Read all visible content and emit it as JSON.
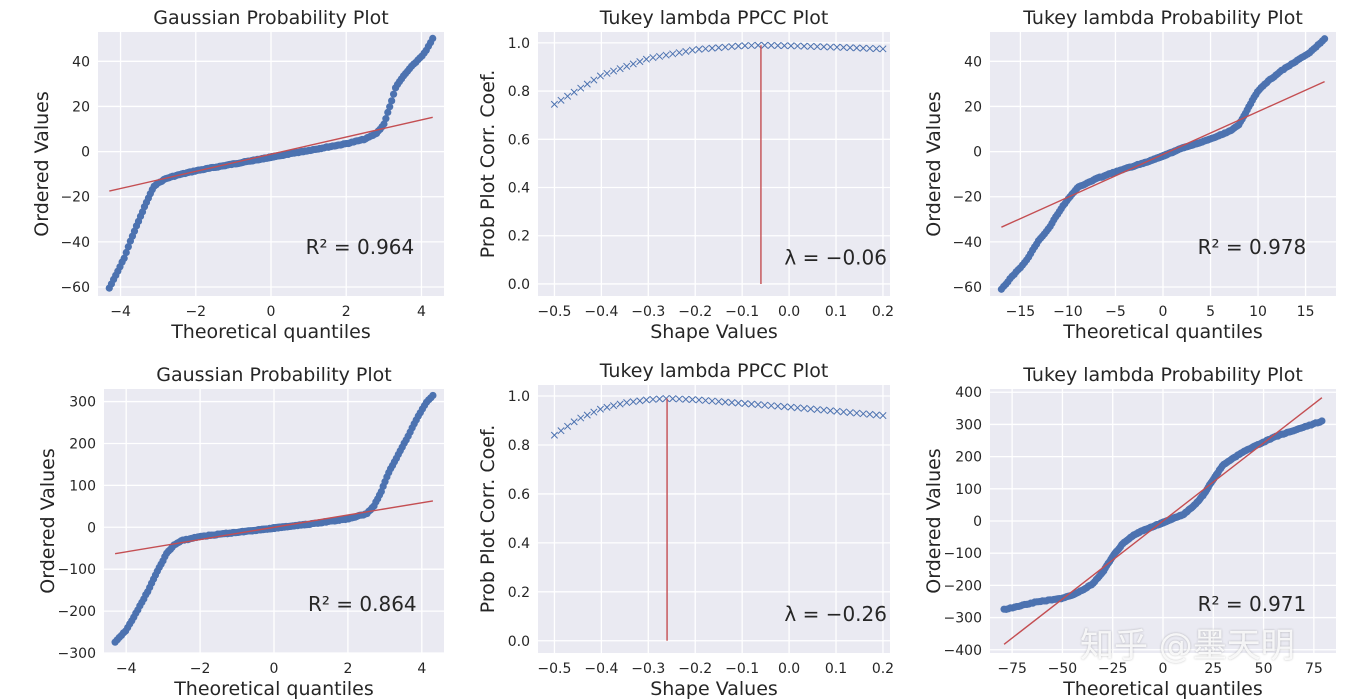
{
  "chart_data": [
    {
      "type": "scatter",
      "title": "Gaussian Probability Plot",
      "xlabel": "Theoretical quantiles",
      "ylabel": "Ordered Values",
      "xlim": [
        -4.6,
        4.6
      ],
      "ylim": [
        -64,
        53
      ],
      "xticks": [
        -4,
        -2,
        0,
        2,
        4
      ],
      "yticks": [
        -60,
        -40,
        -20,
        0,
        20,
        40
      ],
      "xtick_labels": [
        "−4",
        "−2",
        "0",
        "2",
        "4"
      ],
      "ytick_labels": [
        "−60",
        "−40",
        "−20",
        "0",
        "20",
        "40"
      ],
      "fit_line": {
        "x": [
          -4.3,
          4.3
        ],
        "y": [
          -17.5,
          15.2
        ]
      },
      "annotation": "R² = 0.964",
      "curve": {
        "x": [
          -4.3,
          -4.1,
          -3.9,
          -3.7,
          -3.5,
          -3.3,
          -3.1,
          -2.8,
          -2.5,
          -2.0,
          -1.0,
          0.0,
          1.0,
          2.0,
          2.5,
          2.8,
          3.0,
          3.1,
          3.2,
          3.3,
          3.5,
          3.7,
          3.9,
          4.1,
          4.3
        ],
        "y": [
          -60.5,
          -54,
          -47,
          -38,
          -30,
          -22,
          -15,
          -12,
          -10.5,
          -8.5,
          -5.5,
          -2.5,
          0.5,
          3.5,
          5.5,
          8,
          12,
          17,
          22,
          28,
          33,
          37,
          40.5,
          44,
          50
        ]
      },
      "points": 240,
      "gridded": true
    },
    {
      "type": "line",
      "title": "Tukey lambda PPCC Plot",
      "xlabel": "Shape Values",
      "ylabel": "Prob Plot Corr. Coef.",
      "xlim": [
        -0.535,
        0.215
      ],
      "ylim": [
        -0.05,
        1.045
      ],
      "xticks": [
        -0.5,
        -0.4,
        -0.3,
        -0.2,
        -0.1,
        0.0,
        0.1,
        0.2
      ],
      "yticks": [
        0.0,
        0.2,
        0.4,
        0.6,
        0.8,
        1.0
      ],
      "xtick_labels": [
        "−0.5",
        "−0.4",
        "−0.3",
        "−0.2",
        "−0.1",
        "0.0",
        "0.1",
        "0.2"
      ],
      "ytick_labels": [
        "0.0",
        "0.2",
        "0.4",
        "0.6",
        "0.8",
        "1.0"
      ],
      "curve": {
        "x": [
          -0.5,
          -0.4,
          -0.3,
          -0.2,
          -0.1,
          -0.06,
          0.0,
          0.1,
          0.2
        ],
        "y": [
          0.745,
          0.865,
          0.935,
          0.972,
          0.988,
          0.99,
          0.988,
          0.982,
          0.975
        ]
      },
      "marker_count": 51,
      "vline": -0.06,
      "annotation": "λ = −0.06",
      "gridded": true
    },
    {
      "type": "scatter",
      "title": "Tukey lambda Probability Plot",
      "xlabel": "Theoretical quantiles",
      "ylabel": "Ordered Values",
      "xlim": [
        -18.2,
        18.2
      ],
      "ylim": [
        -64,
        53
      ],
      "xticks": [
        -15,
        -10,
        -5,
        0,
        5,
        10,
        15
      ],
      "yticks": [
        -60,
        -40,
        -20,
        0,
        20,
        40
      ],
      "xtick_labels": [
        "−15",
        "−10",
        "−5",
        "0",
        "5",
        "10",
        "15"
      ],
      "ytick_labels": [
        "−60",
        "−40",
        "−20",
        "0",
        "20",
        "40"
      ],
      "fit_line": {
        "x": [
          -17,
          17
        ],
        "y": [
          -33.5,
          31
        ]
      },
      "annotation": "R² = 0.978",
      "curve": {
        "x": [
          -17,
          -15.8,
          -14.5,
          -13,
          -12,
          -11,
          -10,
          -9,
          -7,
          -5,
          -2,
          0,
          2,
          5,
          7,
          8,
          8.7,
          9.3,
          10,
          11,
          12.5,
          14,
          15.5,
          17
        ],
        "y": [
          -61,
          -55,
          -49,
          -39,
          -34,
          -27,
          -21,
          -16,
          -12,
          -9,
          -5,
          -2,
          1.5,
          5.5,
          9,
          12,
          17,
          22,
          27,
          31,
          36,
          40,
          44,
          50
        ]
      },
      "points": 240,
      "gridded": true
    },
    {
      "type": "scatter",
      "title": "Gaussian Probability Plot",
      "xlabel": "Theoretical quantiles",
      "ylabel": "Ordered Values",
      "xlim": [
        -4.6,
        4.6
      ],
      "ylim": [
        -300,
        330
      ],
      "xticks": [
        -4,
        -2,
        0,
        2,
        4
      ],
      "yticks": [
        -300,
        -200,
        -100,
        0,
        100,
        200,
        300
      ],
      "xtick_labels": [
        "−4",
        "−2",
        "0",
        "2",
        "4"
      ],
      "ytick_labels": [
        "−300",
        "−200",
        "−100",
        "0",
        "100",
        "200",
        "300"
      ],
      "fit_line": {
        "x": [
          -4.3,
          4.3
        ],
        "y": [
          -63,
          63
        ]
      },
      "annotation": "R² = 0.864",
      "curve": {
        "x": [
          -4.3,
          -4.0,
          -3.7,
          -3.4,
          -3.1,
          -2.9,
          -2.7,
          -2.5,
          -2.0,
          -1.0,
          0.0,
          1.0,
          2.0,
          2.5,
          2.7,
          2.9,
          3.1,
          3.4,
          3.7,
          3.9,
          4.1,
          4.3
        ],
        "y": [
          -275,
          -245,
          -200,
          -150,
          -95,
          -62,
          -42,
          -32,
          -22,
          -12,
          -2,
          8,
          20,
          32,
          50,
          85,
          130,
          180,
          230,
          265,
          295,
          315
        ]
      },
      "points": 240,
      "gridded": true
    },
    {
      "type": "line",
      "title": "Tukey lambda PPCC Plot",
      "xlabel": "Shape Values",
      "ylabel": "Prob Plot Corr. Coef.",
      "xlim": [
        -0.535,
        0.215
      ],
      "ylim": [
        -0.05,
        1.045
      ],
      "xticks": [
        -0.5,
        -0.4,
        -0.3,
        -0.2,
        -0.1,
        0.0,
        0.1,
        0.2
      ],
      "yticks": [
        0.0,
        0.2,
        0.4,
        0.6,
        0.8,
        1.0
      ],
      "xtick_labels": [
        "−0.5",
        "−0.4",
        "−0.3",
        "−0.2",
        "−0.1",
        "0.0",
        "0.1",
        "0.2"
      ],
      "ytick_labels": [
        "0.0",
        "0.2",
        "0.4",
        "0.6",
        "0.8",
        "1.0"
      ],
      "curve": {
        "x": [
          -0.5,
          -0.45,
          -0.4,
          -0.35,
          -0.3,
          -0.26,
          -0.2,
          -0.1,
          0.0,
          0.1,
          0.2
        ],
        "y": [
          0.84,
          0.905,
          0.948,
          0.972,
          0.985,
          0.99,
          0.985,
          0.97,
          0.955,
          0.938,
          0.92
        ]
      },
      "marker_count": 51,
      "vline": -0.26,
      "annotation": "λ = −0.26",
      "gridded": true
    },
    {
      "type": "scatter",
      "title": "Tukey lambda Probability Plot",
      "xlabel": "Theoretical quantiles",
      "ylabel": "Ordered Values",
      "xlim": [
        -86,
        86
      ],
      "ylim": [
        -410,
        410
      ],
      "xticks": [
        -75,
        -50,
        -25,
        0,
        25,
        50,
        75
      ],
      "yticks": [
        -400,
        -300,
        -200,
        -100,
        0,
        100,
        200,
        300,
        400
      ],
      "xtick_labels": [
        "−75",
        "−50",
        "−25",
        "0",
        "25",
        "50",
        "75"
      ],
      "ytick_labels": [
        "−400",
        "−300",
        "−200",
        "−100",
        "0",
        "100",
        "200",
        "300",
        "400"
      ],
      "fit_line": {
        "x": [
          -79,
          79
        ],
        "y": [
          -383,
          383
        ]
      },
      "annotation": "R² = 0.971",
      "curve": {
        "x": [
          -79,
          -62,
          -55,
          -50,
          -45,
          -40,
          -35,
          -30,
          -25,
          -20,
          -15,
          -10,
          0,
          10,
          15,
          20,
          25,
          30,
          35,
          40,
          45,
          50,
          55,
          62,
          79
        ],
        "y": [
          -275,
          -250,
          -245,
          -240,
          -230,
          -215,
          -195,
          -160,
          -110,
          -70,
          -45,
          -30,
          -5,
          20,
          45,
          80,
          130,
          175,
          195,
          215,
          230,
          245,
          260,
          275,
          310
        ]
      },
      "points": 240,
      "gridded": true
    }
  ],
  "watermark": "知乎 @墨天明",
  "colors": {
    "axes_bg": "#EAEAF2",
    "grid": "#FFFFFF",
    "points": "#4C72B0",
    "line": "#C44E52",
    "text": "#262626"
  }
}
